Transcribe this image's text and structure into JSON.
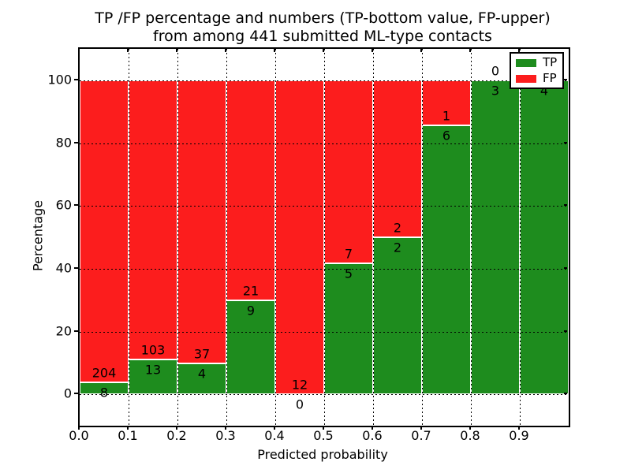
{
  "title": {
    "line1": "TP /FP percentage and numbers (TP-bottom value, FP-upper)",
    "line2": "from among 441 submitted ML-type contacts"
  },
  "axes": {
    "xlabel": "Predicted probability",
    "ylabel": "Percentage"
  },
  "legend": {
    "position": "upper right",
    "items": [
      {
        "label": "TP",
        "color": "#1e8c1e"
      },
      {
        "label": "FP",
        "color": "#fc1d1d"
      }
    ]
  },
  "chart_data": {
    "type": "bar",
    "subtype": "stacked-percentage",
    "title": "TP /FP percentage and numbers (TP-bottom value, FP-upper) from among 441 submitted ML-type contacts",
    "xlabel": "Predicted probability",
    "ylabel": "Percentage",
    "total_contacts": 441,
    "categories": [
      "0.0-0.1",
      "0.1-0.2",
      "0.2-0.3",
      "0.3-0.4",
      "0.4-0.5",
      "0.5-0.6",
      "0.6-0.7",
      "0.7-0.8",
      "0.8-0.9",
      "0.9-1.0"
    ],
    "series": [
      {
        "name": "TP",
        "color": "#1e8c1e",
        "values": [
          8,
          13,
          4,
          9,
          0,
          5,
          2,
          6,
          3,
          4
        ]
      },
      {
        "name": "FP",
        "color": "#fc1d1d",
        "values": [
          204,
          103,
          37,
          21,
          12,
          7,
          2,
          1,
          0,
          0
        ]
      }
    ],
    "tp_percent_of_bin": [
      3.8,
      11.2,
      9.8,
      30.0,
      0.0,
      41.7,
      50.0,
      85.7,
      100.0,
      100.0
    ],
    "x_tick_labels": [
      "0.0",
      "0.1",
      "0.2",
      "0.3",
      "0.4",
      "0.5",
      "0.6",
      "0.7",
      "0.8",
      "0.9"
    ],
    "x_tick_values": [
      0.0,
      0.1,
      0.2,
      0.3,
      0.4,
      0.5,
      0.6,
      0.7,
      0.8,
      0.9
    ],
    "y_tick_labels": [
      "0",
      "20",
      "40",
      "60",
      "80",
      "100"
    ],
    "y_tick_values": [
      0,
      20,
      40,
      60,
      80,
      100
    ],
    "xlim": [
      0.0,
      1.0
    ],
    "ylim": [
      -10,
      110
    ],
    "grid": "dotted"
  }
}
